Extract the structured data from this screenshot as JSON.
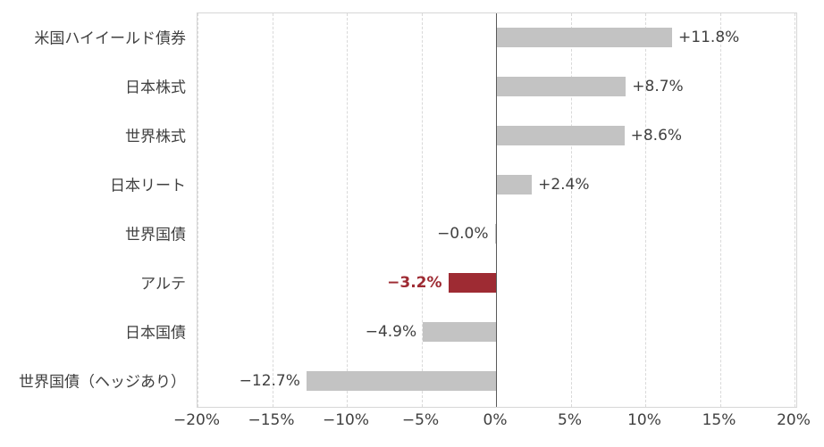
{
  "chart_data": {
    "type": "bar",
    "orientation": "horizontal",
    "title": "",
    "categories": [
      "米国ハイイールド債券",
      "日本株式",
      "世界株式",
      "日本リート",
      "世界国債",
      "アルテ",
      "日本国債",
      "世界国債（ヘッジあり）"
    ],
    "values": [
      11.8,
      8.7,
      8.6,
      2.4,
      -0.0,
      -3.2,
      -4.9,
      -12.7
    ],
    "value_labels": [
      "+11.8%",
      "+8.7%",
      "+8.6%",
      "+2.4%",
      "−0.0%",
      "−3.2%",
      "−4.9%",
      "−12.7%"
    ],
    "highlight_index": 5,
    "xlim": [
      -20,
      20
    ],
    "x_ticks": [
      -20,
      -15,
      -10,
      -5,
      0,
      5,
      10,
      15,
      20
    ],
    "x_tick_labels": [
      "−20%",
      "−15%",
      "−10%",
      "−5%",
      "0%",
      "5%",
      "10%",
      "15%",
      "20%"
    ],
    "grid": "vertical-dashed",
    "legend": "none",
    "colors": {
      "bar": "#c3c3c3",
      "highlight": "#9e2b33",
      "text": "#404040",
      "grid": "#d9d9d9",
      "zero_line": "#595959",
      "border": "#d6d6d6"
    }
  }
}
